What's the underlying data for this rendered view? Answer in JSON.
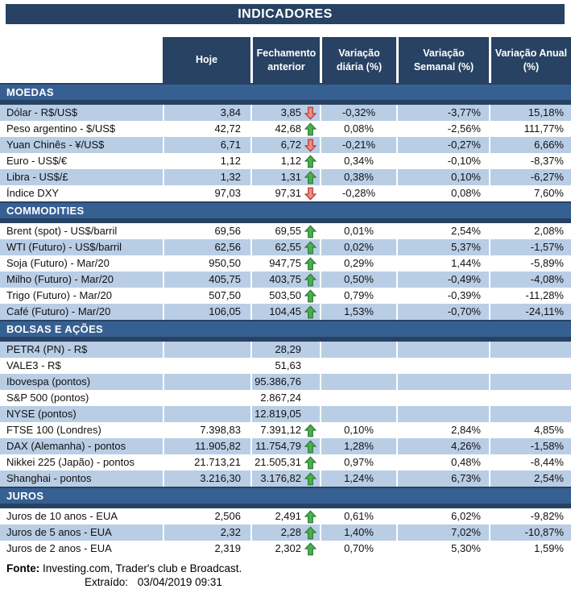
{
  "title": "INDICADORES",
  "columns": [
    "Hoje",
    "Fechamento anterior",
    "Variação diária (%)",
    "Variação Semanal (%)",
    "Variação Anual (%)"
  ],
  "sections": [
    {
      "name": "MOEDAS",
      "rows": [
        {
          "label": "Dólar - R$/US$",
          "hoje": "3,84",
          "fechamento": "3,85",
          "arrow": "down",
          "diaria": "-0,32%",
          "semanal": "-3,77%",
          "anual": "15,18%",
          "shaded": true
        },
        {
          "label": "Peso argentino - $/US$",
          "hoje": "42,72",
          "fechamento": "42,68",
          "arrow": "up",
          "diaria": "0,08%",
          "semanal": "-2,56%",
          "anual": "111,77%",
          "shaded": false
        },
        {
          "label": "Yuan Chinês - ¥/US$",
          "hoje": "6,71",
          "fechamento": "6,72",
          "arrow": "down",
          "diaria": "-0,21%",
          "semanal": "-0,27%",
          "anual": "6,66%",
          "shaded": true
        },
        {
          "label": "Euro - US$/€",
          "hoje": "1,12",
          "fechamento": "1,12",
          "arrow": "up",
          "diaria": "0,34%",
          "semanal": "-0,10%",
          "anual": "-8,37%",
          "shaded": false
        },
        {
          "label": "Libra - US$/£",
          "hoje": "1,32",
          "fechamento": "1,31",
          "arrow": "up",
          "diaria": "0,38%",
          "semanal": "0,10%",
          "anual": "-6,27%",
          "shaded": true
        },
        {
          "label": "Índice DXY",
          "hoje": "97,03",
          "fechamento": "97,31",
          "arrow": "down",
          "diaria": "-0,28%",
          "semanal": "0,08%",
          "anual": "7,60%",
          "shaded": false
        }
      ]
    },
    {
      "name": "COMMODITIES",
      "rows": [
        {
          "label": "Brent (spot) - US$/barril",
          "hoje": "69,56",
          "fechamento": "69,55",
          "arrow": "up",
          "diaria": "0,01%",
          "semanal": "2,54%",
          "anual": "2,08%",
          "shaded": false
        },
        {
          "label": "WTI (Futuro) - US$/barril",
          "hoje": "62,56",
          "fechamento": "62,55",
          "arrow": "up",
          "diaria": "0,02%",
          "semanal": "5,37%",
          "anual": "-1,57%",
          "shaded": true
        },
        {
          "label": "Soja (Futuro) - Mar/20",
          "hoje": "950,50",
          "fechamento": "947,75",
          "arrow": "up",
          "diaria": "0,29%",
          "semanal": "1,44%",
          "anual": "-5,89%",
          "shaded": false
        },
        {
          "label": "Milho (Futuro) - Mar/20",
          "hoje": "405,75",
          "fechamento": "403,75",
          "arrow": "up",
          "diaria": "0,50%",
          "semanal": "-0,49%",
          "anual": "-4,08%",
          "shaded": true
        },
        {
          "label": "Trigo (Futuro) - Mar/20",
          "hoje": "507,50",
          "fechamento": "503,50",
          "arrow": "up",
          "diaria": "0,79%",
          "semanal": "-0,39%",
          "anual": "-11,28%",
          "shaded": false
        },
        {
          "label": "Café (Futuro) - Mar/20",
          "hoje": "106,05",
          "fechamento": "104,45",
          "arrow": "up",
          "diaria": "1,53%",
          "semanal": "-0,70%",
          "anual": "-24,11%",
          "shaded": true
        }
      ]
    },
    {
      "name": "BOLSAS E AÇÕES",
      "rows": [
        {
          "label": "PETR4 (PN) - R$",
          "hoje": "",
          "fechamento": "28,29",
          "arrow": "",
          "diaria": "",
          "semanal": "",
          "anual": "",
          "shaded": true
        },
        {
          "label": "VALE3 - R$",
          "hoje": "",
          "fechamento": "51,63",
          "arrow": "",
          "diaria": "",
          "semanal": "",
          "anual": "",
          "shaded": false
        },
        {
          "label": "Ibovespa (pontos)",
          "hoje": "",
          "fechamento": "95.386,76",
          "arrow": "",
          "diaria": "",
          "semanal": "",
          "anual": "",
          "shaded": true
        },
        {
          "label": "S&P 500 (pontos)",
          "hoje": "",
          "fechamento": "2.867,24",
          "arrow": "",
          "diaria": "",
          "semanal": "",
          "anual": "",
          "shaded": false
        },
        {
          "label": "NYSE (pontos)",
          "hoje": "",
          "fechamento": "12.819,05",
          "arrow": "",
          "diaria": "",
          "semanal": "",
          "anual": "",
          "shaded": true
        },
        {
          "label": "FTSE 100 (Londres)",
          "hoje": "7.398,83",
          "fechamento": "7.391,12",
          "arrow": "up",
          "diaria": "0,10%",
          "semanal": "2,84%",
          "anual": "4,85%",
          "shaded": false
        },
        {
          "label": "DAX (Alemanha) - pontos",
          "hoje": "11.905,82",
          "fechamento": "11.754,79",
          "arrow": "up",
          "diaria": "1,28%",
          "semanal": "4,26%",
          "anual": "-1,58%",
          "shaded": true
        },
        {
          "label": "Nikkei 225 (Japão) - pontos",
          "hoje": "21.713,21",
          "fechamento": "21.505,31",
          "arrow": "up",
          "diaria": "0,97%",
          "semanal": "0,48%",
          "anual": "-8,44%",
          "shaded": false
        },
        {
          "label": "Shanghai - pontos",
          "hoje": "3.216,30",
          "fechamento": "3.176,82",
          "arrow": "up",
          "diaria": "1,24%",
          "semanal": "6,73%",
          "anual": "2,54%",
          "shaded": true
        }
      ]
    },
    {
      "name": "JUROS",
      "rows": [
        {
          "label": "Juros de 10 anos - EUA",
          "hoje": "2,506",
          "fechamento": "2,491",
          "arrow": "up",
          "diaria": "0,61%",
          "semanal": "6,02%",
          "anual": "-9,82%",
          "shaded": false
        },
        {
          "label": "Juros de 5 anos - EUA",
          "hoje": "2,32",
          "fechamento": "2,28",
          "arrow": "up",
          "diaria": "1,40%",
          "semanal": "7,02%",
          "anual": "-10,87%",
          "shaded": true
        },
        {
          "label": "Juros de 2 anos - EUA",
          "hoje": "2,319",
          "fechamento": "2,302",
          "arrow": "up",
          "diaria": "0,70%",
          "semanal": "5,30%",
          "anual": "1,59%",
          "shaded": false
        }
      ]
    }
  ],
  "footer": {
    "fonte_label": "Fonte:",
    "fonte_text": "Investing.com, Trader's club e Broadcast.",
    "extraido_label": "Extraído:",
    "extraido_value": "03/04/2019 09:31"
  },
  "icons": {
    "up": "up-arrow-icon",
    "down": "down-arrow-icon"
  },
  "colors": {
    "navy": "#274262",
    "section_blue": "#376092",
    "row_shade": "#B9CDE5",
    "up_arrow": "#4CAF50",
    "up_arrow_border": "#2E7D32",
    "down_arrow": "#E88E8E",
    "down_arrow_border": "#C0392B"
  }
}
